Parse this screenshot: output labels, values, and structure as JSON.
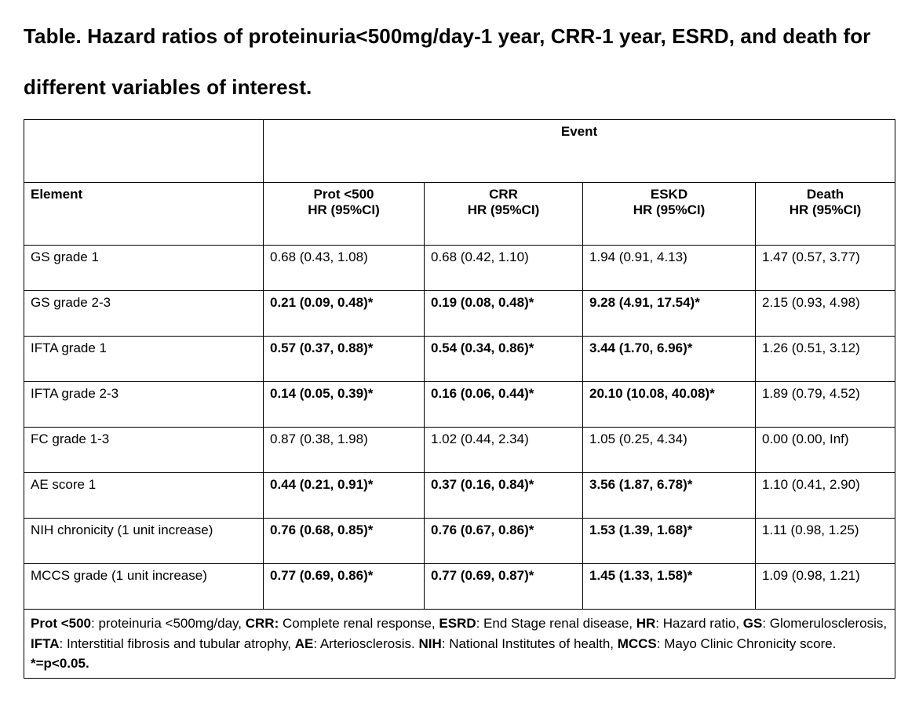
{
  "page": {
    "title": "Table. Hazard ratios of proteinuria<500mg/day-1 year, CRR-1 year, ESRD, and death for different variables of interest."
  },
  "table": {
    "event_header": "Event",
    "element_header": "Element",
    "column_headers": [
      {
        "label": "Prot <500",
        "sub": "HR (95%CI)"
      },
      {
        "label": "CRR",
        "sub": "HR (95%CI)"
      },
      {
        "label": "ESKD",
        "sub": "HR (95%CI)"
      },
      {
        "label": "Death",
        "sub": "HR (95%CI)"
      }
    ],
    "rows": [
      {
        "label": "GS grade 1",
        "values": [
          {
            "text": "0.68 (0.43, 1.08)",
            "bold": false
          },
          {
            "text": "0.68 (0.42, 1.10)",
            "bold": false
          },
          {
            "text": "1.94 (0.91, 4.13)",
            "bold": false
          },
          {
            "text": "1.47 (0.57, 3.77)",
            "bold": false
          }
        ]
      },
      {
        "label": "GS grade 2-3",
        "values": [
          {
            "text": "0.21 (0.09, 0.48)*",
            "bold": true
          },
          {
            "text": "0.19 (0.08, 0.48)*",
            "bold": true
          },
          {
            "text": "9.28 (4.91, 17.54)*",
            "bold": true
          },
          {
            "text": "2.15 (0.93, 4.98)",
            "bold": false
          }
        ]
      },
      {
        "label": "IFTA grade 1",
        "values": [
          {
            "text": "0.57 (0.37, 0.88)*",
            "bold": true
          },
          {
            "text": "0.54 (0.34, 0.86)*",
            "bold": true
          },
          {
            "text": "3.44 (1.70, 6.96)*",
            "bold": true
          },
          {
            "text": "1.26 (0.51, 3.12)",
            "bold": false
          }
        ]
      },
      {
        "label": "IFTA grade 2-3",
        "values": [
          {
            "text": "0.14 (0.05, 0.39)*",
            "bold": true
          },
          {
            "text": "0.16 (0.06, 0.44)*",
            "bold": true
          },
          {
            "text": "20.10 (10.08, 40.08)*",
            "bold": true
          },
          {
            "text": "1.89 (0.79, 4.52)",
            "bold": false
          }
        ]
      },
      {
        "label": "FC grade 1-3",
        "values": [
          {
            "text": "0.87 (0.38, 1.98)",
            "bold": false
          },
          {
            "text": "1.02 (0.44, 2.34)",
            "bold": false
          },
          {
            "text": "1.05 (0.25, 4.34)",
            "bold": false
          },
          {
            "text": "0.00 (0.00, Inf)",
            "bold": false
          }
        ]
      },
      {
        "label": "AE score 1",
        "values": [
          {
            "text": "0.44 (0.21, 0.91)*",
            "bold": true
          },
          {
            "text": "0.37 (0.16, 0.84)*",
            "bold": true
          },
          {
            "text": "3.56 (1.87, 6.78)*",
            "bold": true
          },
          {
            "text": "1.10 (0.41, 2.90)",
            "bold": false
          }
        ]
      },
      {
        "label": "NIH chronicity (1 unit increase)",
        "values": [
          {
            "text": "0.76 (0.68, 0.85)*",
            "bold": true
          },
          {
            "text": "0.76 (0.67, 0.86)*",
            "bold": true
          },
          {
            "text": "1.53 (1.39, 1.68)*",
            "bold": true
          },
          {
            "text": "1.11 (0.98, 1.25)",
            "bold": false
          }
        ]
      },
      {
        "label": "MCCS grade (1 unit increase)",
        "values": [
          {
            "text": "0.77 (0.69, 0.86)*",
            "bold": true
          },
          {
            "text": "0.77 (0.69, 0.87)*",
            "bold": true
          },
          {
            "text": "1.45 (1.33, 1.58)*",
            "bold": true
          },
          {
            "text": "1.09 (0.98, 1.21)",
            "bold": false
          }
        ]
      }
    ],
    "footnote_segments": [
      {
        "text": "Prot <500",
        "bold": true
      },
      {
        "text": ": proteinuria <500mg/day, ",
        "bold": false
      },
      {
        "text": "CRR:",
        "bold": true
      },
      {
        "text": " Complete renal response, ",
        "bold": false
      },
      {
        "text": "ESRD",
        "bold": true
      },
      {
        "text": ": End Stage renal disease, ",
        "bold": false
      },
      {
        "text": "HR",
        "bold": true
      },
      {
        "text": ": Hazard ratio, ",
        "bold": false
      },
      {
        "text": "GS",
        "bold": true
      },
      {
        "text": ": Glomerulosclerosis, ",
        "bold": false
      },
      {
        "text": "IFTA",
        "bold": true
      },
      {
        "text": ": Interstitial fibrosis and tubular atrophy, ",
        "bold": false
      },
      {
        "text": "AE",
        "bold": true
      },
      {
        "text": ": Arteriosclerosis. ",
        "bold": false
      },
      {
        "text": "NIH",
        "bold": true
      },
      {
        "text": ": National Institutes of health, ",
        "bold": false
      },
      {
        "text": "MCCS",
        "bold": true
      },
      {
        "text": ": Mayo Clinic Chronicity score. ",
        "bold": false
      },
      {
        "text": "*=p<0.05.",
        "bold": true
      }
    ]
  }
}
